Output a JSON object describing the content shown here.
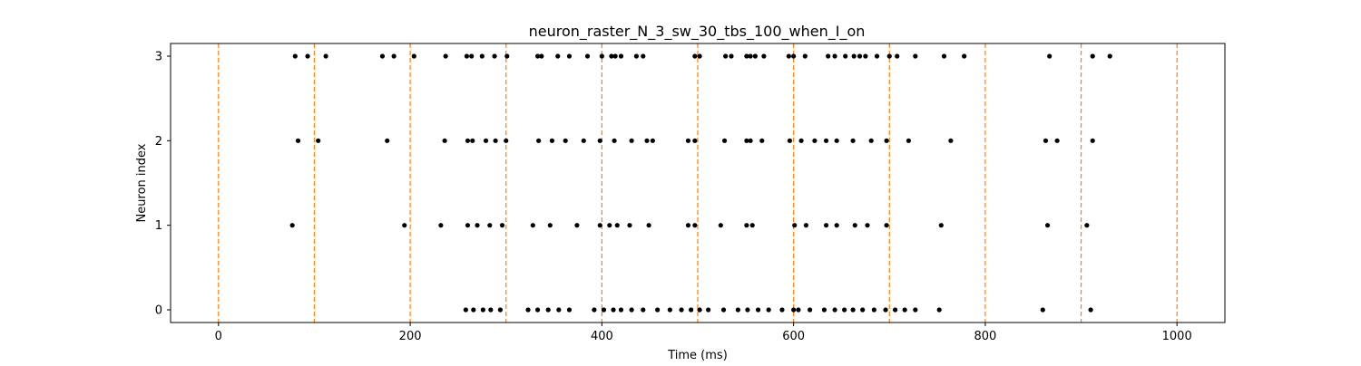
{
  "chart_data": {
    "type": "scatter",
    "title": "neuron_raster_N_3_sw_30_tbs_100_when_I_on",
    "xlabel": "Time (ms)",
    "ylabel": "Neuron index",
    "xlim": [
      -50,
      1050
    ],
    "ylim": [
      -0.15,
      3.15
    ],
    "xticks": [
      0,
      200,
      400,
      600,
      800,
      1000
    ],
    "yticks": [
      0,
      1,
      2,
      3
    ],
    "marker_color": "#000000",
    "vline_color": "#ff7f0e",
    "vline_style": "dashed",
    "vlines": [
      0,
      100,
      200,
      300,
      400,
      500,
      600,
      700,
      800,
      900,
      1000
    ],
    "grid": false,
    "series": [
      {
        "neuron": 0,
        "x": [
          258,
          266,
          276,
          284,
          294,
          323,
          333,
          344,
          355,
          366,
          392,
          402,
          412,
          420,
          431,
          443,
          458,
          471,
          483,
          493,
          502,
          511,
          527,
          542,
          552,
          563,
          574,
          588,
          600,
          605,
          617,
          632,
          643,
          653,
          662,
          672,
          684,
          696,
          706,
          716,
          727,
          752,
          860,
          910
        ]
      },
      {
        "neuron": 1,
        "x": [
          77,
          194,
          232,
          260,
          270,
          283,
          296,
          328,
          346,
          374,
          398,
          408,
          416,
          429,
          449,
          490,
          497,
          524,
          551,
          557,
          601,
          613,
          634,
          645,
          664,
          677,
          697,
          754,
          865,
          906
        ]
      },
      {
        "neuron": 2,
        "x": [
          83,
          104,
          176,
          236,
          260,
          265,
          279,
          289,
          300,
          334,
          348,
          362,
          381,
          398,
          413,
          431,
          447,
          453,
          490,
          497,
          528,
          551,
          555,
          567,
          596,
          608,
          622,
          634,
          645,
          662,
          681,
          697,
          720,
          764,
          863,
          875,
          912
        ]
      },
      {
        "neuron": 3,
        "x": [
          80,
          93,
          112,
          171,
          183,
          204,
          237,
          259,
          264,
          275,
          288,
          301,
          333,
          337,
          354,
          366,
          385,
          400,
          410,
          414,
          420,
          436,
          443,
          497,
          502,
          529,
          535,
          551,
          555,
          560,
          569,
          595,
          600,
          612,
          636,
          643,
          654,
          663,
          669,
          675,
          687,
          700,
          708,
          727,
          757,
          778,
          867,
          912,
          930
        ]
      }
    ]
  }
}
